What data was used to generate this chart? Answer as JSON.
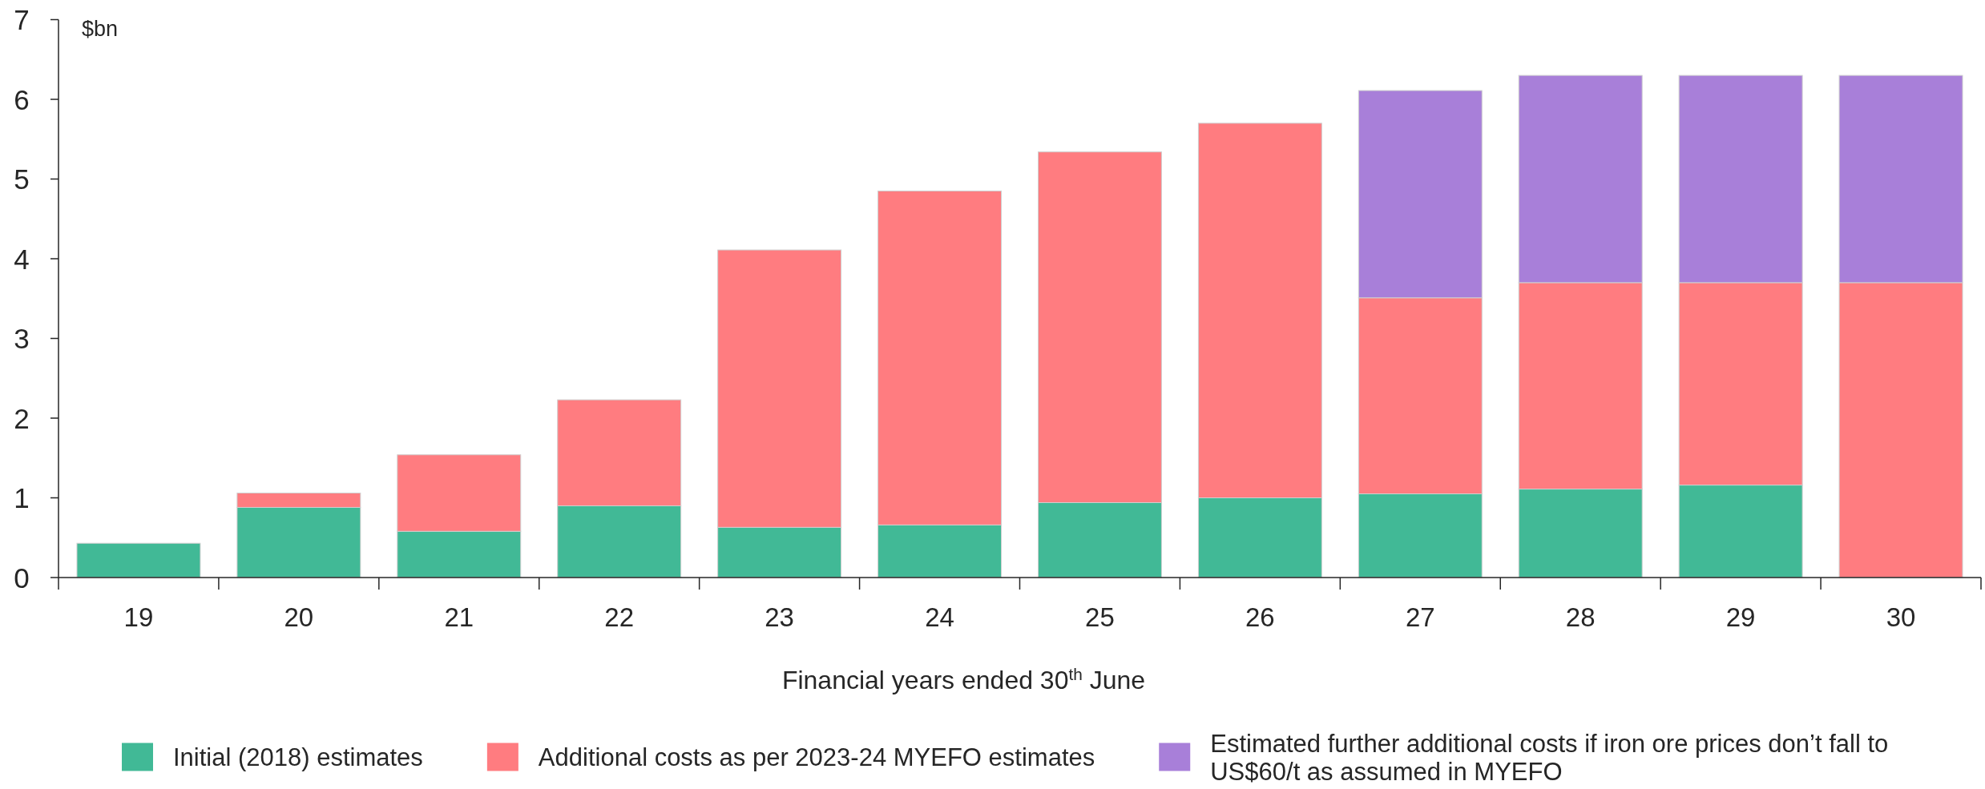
{
  "chart_data": {
    "type": "bar",
    "stacked": true,
    "ylabel": "$bn",
    "xlabel": "Financial years ended 30$^{th}$ June",
    "categories": [
      "19",
      "20",
      "21",
      "22",
      "23",
      "24",
      "25",
      "26",
      "27",
      "28",
      "29",
      "30"
    ],
    "series": [
      {
        "name": "Initial (2018) estimates",
        "color": "#41b996",
        "values": [
          0.43,
          0.88,
          0.58,
          0.9,
          0.63,
          0.66,
          0.94,
          1.0,
          1.05,
          1.11,
          1.16,
          null
        ]
      },
      {
        "name": "Additional costs as per 2023-24 MYEFO estimates",
        "color": "#ff7c80",
        "values": [
          null,
          0.18,
          0.96,
          1.33,
          3.48,
          4.19,
          4.4,
          4.7,
          2.46,
          2.59,
          2.54,
          3.7
        ]
      },
      {
        "name": "Estimated further additional costs if iron ore prices don’t fall to US$60/t as assumed in MYEFO",
        "color": "#a87fd9",
        "values": [
          null,
          null,
          null,
          null,
          null,
          null,
          null,
          null,
          2.6,
          2.6,
          2.6,
          2.6
        ]
      }
    ],
    "ylim": [
      0,
      7
    ],
    "yticks": [
      0,
      1,
      2,
      3,
      4,
      5,
      6,
      7
    ],
    "legend": "bottom"
  }
}
